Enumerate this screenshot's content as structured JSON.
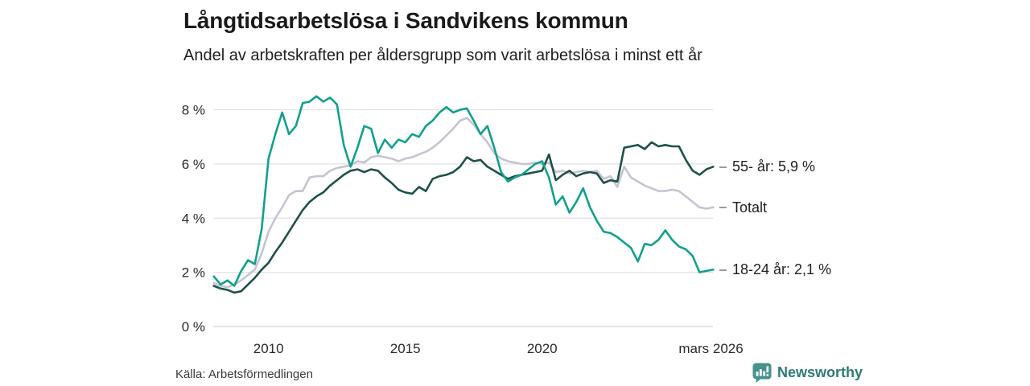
{
  "header": {
    "title": "Långtidsarbetslösa i Sandvikens kommun",
    "subtitle": "Andel av arbetskraften per åldersgrupp som varit arbetslösa i minst ett år"
  },
  "chart_data": {
    "type": "line",
    "title": "Långtidsarbetslösa i Sandvikens kommun",
    "subtitle": "Andel av arbetskraften per åldersgrupp som varit arbetslösa i minst ett år",
    "unit": "% av arbetskraften",
    "grid": "horizontal",
    "legend_position": "right-end-labels",
    "xlim": [
      2007.98,
      2026.36
    ],
    "ylim": [
      0,
      8.55
    ],
    "x_years": [
      2008,
      2008.25,
      2008.5,
      2008.75,
      2009,
      2009.25,
      2009.5,
      2009.75,
      2010,
      2010.25,
      2010.5,
      2010.75,
      2011,
      2011.25,
      2011.5,
      2011.75,
      2012,
      2012.25,
      2012.5,
      2012.75,
      2013,
      2013.25,
      2013.5,
      2013.75,
      2014,
      2014.25,
      2014.5,
      2014.75,
      2015,
      2015.25,
      2015.5,
      2015.75,
      2016,
      2016.25,
      2016.5,
      2016.75,
      2017,
      2017.25,
      2017.5,
      2017.75,
      2018,
      2018.25,
      2018.5,
      2018.75,
      2019,
      2019.25,
      2019.5,
      2019.75,
      2020,
      2020.25,
      2020.5,
      2020.75,
      2021,
      2021.25,
      2021.5,
      2021.75,
      2022,
      2022.25,
      2022.5,
      2022.75,
      2023,
      2023.25,
      2023.5,
      2023.75,
      2024,
      2024.25,
      2024.5,
      2024.75,
      2025,
      2025.25,
      2025.5,
      2025.75,
      2026,
      2026.25
    ],
    "series": [
      {
        "id": "totalt",
        "label": "Totalt",
        "end_label": "Totalt",
        "color": "#c6c4d2",
        "values": [
          1.6,
          1.5,
          1.45,
          1.55,
          1.7,
          1.9,
          2.1,
          2.7,
          3.5,
          4.0,
          4.4,
          4.85,
          5.0,
          5.0,
          5.5,
          5.55,
          5.55,
          5.75,
          5.85,
          5.9,
          5.95,
          6.1,
          6.05,
          6.25,
          6.3,
          6.25,
          6.2,
          6.1,
          6.2,
          6.25,
          6.35,
          6.45,
          6.6,
          6.8,
          7.05,
          7.3,
          7.6,
          7.7,
          7.45,
          7.1,
          6.8,
          6.4,
          6.2,
          6.1,
          6.05,
          6.0,
          6.0,
          6.05,
          6.0,
          6.05,
          5.7,
          5.75,
          5.65,
          5.7,
          5.75,
          5.7,
          5.75,
          5.45,
          5.55,
          5.15,
          5.9,
          5.5,
          5.35,
          5.2,
          5.1,
          5.0,
          5.0,
          5.05,
          5.0,
          4.8,
          4.6,
          4.4,
          4.35,
          4.4
        ]
      },
      {
        "id": "55plus",
        "label": "55- år",
        "end_label": "55- år: 5,9 %",
        "end_value": "5,9 %",
        "color": "#20504a",
        "values": [
          1.5,
          1.4,
          1.35,
          1.25,
          1.3,
          1.55,
          1.8,
          2.1,
          2.35,
          2.75,
          3.1,
          3.5,
          3.9,
          4.3,
          4.6,
          4.8,
          4.95,
          5.2,
          5.4,
          5.6,
          5.75,
          5.8,
          5.7,
          5.8,
          5.75,
          5.5,
          5.3,
          5.05,
          4.95,
          4.9,
          5.15,
          5.0,
          5.45,
          5.55,
          5.6,
          5.7,
          5.9,
          6.25,
          6.1,
          6.15,
          5.9,
          5.75,
          5.6,
          5.45,
          5.55,
          5.6,
          5.65,
          5.7,
          5.75,
          6.35,
          5.4,
          5.6,
          5.75,
          5.55,
          5.65,
          5.7,
          5.65,
          5.3,
          5.4,
          5.35,
          6.6,
          6.65,
          6.7,
          6.55,
          6.8,
          6.65,
          6.7,
          6.65,
          6.65,
          6.15,
          5.75,
          5.6,
          5.8,
          5.9
        ]
      },
      {
        "id": "18-24",
        "label": "18-24 år",
        "end_label": "18-24 år: 2,1 %",
        "end_value": "2,1 %",
        "color": "#12a08c",
        "values": [
          1.85,
          1.55,
          1.7,
          1.5,
          2.05,
          2.45,
          2.3,
          3.6,
          6.2,
          7.1,
          7.9,
          7.1,
          7.4,
          8.25,
          8.3,
          8.5,
          8.3,
          8.45,
          8.2,
          6.7,
          5.9,
          6.6,
          7.4,
          7.3,
          6.4,
          6.9,
          6.6,
          6.9,
          6.8,
          7.1,
          7.0,
          7.4,
          7.6,
          7.9,
          8.1,
          7.9,
          8.0,
          8.05,
          7.6,
          7.1,
          7.4,
          6.6,
          5.7,
          5.35,
          5.5,
          5.6,
          5.8,
          6.0,
          6.1,
          5.5,
          4.5,
          4.8,
          4.2,
          4.6,
          5.1,
          4.4,
          3.9,
          3.5,
          3.45,
          3.3,
          3.1,
          2.9,
          2.4,
          3.05,
          3.0,
          3.2,
          3.55,
          3.2,
          2.95,
          2.85,
          2.6,
          2.0,
          2.05,
          2.1
        ]
      }
    ],
    "y_ticks": [
      {
        "value": 8,
        "label": "8 %"
      },
      {
        "value": 6,
        "label": "6 %"
      },
      {
        "value": 4,
        "label": "4 %"
      },
      {
        "value": 2,
        "label": "2 %"
      },
      {
        "value": 0,
        "label": "0 %"
      }
    ],
    "x_ticks": [
      {
        "year": 2010,
        "label": "2010"
      },
      {
        "year": 2015,
        "label": "2015"
      },
      {
        "year": 2020,
        "label": "2020"
      },
      {
        "year": 2026.17,
        "label": "mars 2026"
      }
    ]
  },
  "footer": {
    "source": "Källa: Arbetsförmedlingen",
    "brand": "Newsworthy"
  }
}
